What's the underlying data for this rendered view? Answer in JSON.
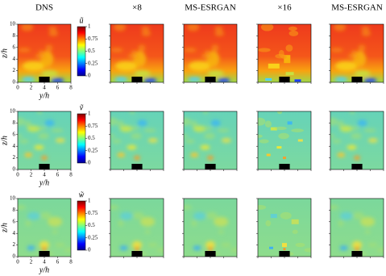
{
  "columns": [
    "DNS",
    "×8",
    "MS-ESRGAN",
    "×16",
    "MS-ESRGAN"
  ],
  "x_axis": {
    "label": "y/h",
    "ticks": [
      0,
      2,
      4,
      6,
      8
    ]
  },
  "z_axis": {
    "label": "z/h",
    "ticks": [
      0,
      2,
      4,
      6,
      8,
      10
    ]
  },
  "rows": [
    {
      "colorbar_title": "ũ"
    },
    {
      "colorbar_title": "ṽ"
    },
    {
      "colorbar_title": "w̃"
    }
  ],
  "colorbar_ticks": [
    0,
    0.25,
    0.5,
    0.75,
    1
  ]
}
